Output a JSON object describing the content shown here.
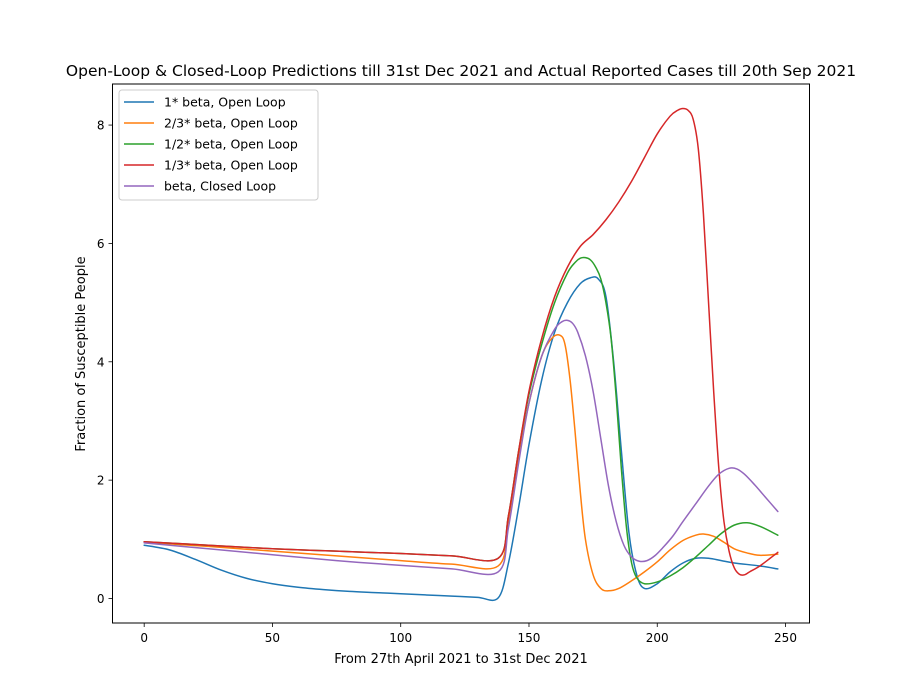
{
  "chart_data": {
    "type": "line",
    "title": "Open-Loop & Closed-Loop Predictions till 31st Dec 2021 and Actual Reported Cases till 20th Sep 2021",
    "xlabel": "From 27th April 2021 to 31st Dec 2021",
    "ylabel": "Fraction of Susceptible People",
    "xlim": [
      -12.35,
      259.35
    ],
    "ylim": [
      -0.414,
      8.694
    ],
    "xticks": [
      0,
      50,
      100,
      150,
      200,
      250
    ],
    "yticks": [
      0,
      2,
      4,
      6,
      8
    ],
    "grid": false,
    "legend_position": "upper-left",
    "series": [
      {
        "name": "1* beta, Open Loop",
        "color": "#1f77b4",
        "x": [
          0,
          10,
          20,
          30,
          40,
          50,
          60,
          70,
          80,
          90,
          100,
          110,
          120,
          130,
          138,
          142,
          146,
          150,
          155,
          160,
          165,
          170,
          174,
          177,
          180,
          183,
          186,
          189,
          192,
          195,
          200,
          205,
          210,
          215,
          220,
          225,
          230,
          240,
          247
        ],
        "y": [
          0.9,
          0.82,
          0.66,
          0.48,
          0.34,
          0.25,
          0.19,
          0.15,
          0.12,
          0.1,
          0.08,
          0.06,
          0.04,
          0.02,
          0.01,
          0.6,
          1.55,
          2.6,
          3.7,
          4.5,
          5.0,
          5.32,
          5.42,
          5.4,
          5.1,
          4.0,
          2.5,
          1.1,
          0.4,
          0.17,
          0.25,
          0.45,
          0.6,
          0.68,
          0.68,
          0.64,
          0.6,
          0.55,
          0.5
        ]
      },
      {
        "name": "2/3* beta, Open Loop",
        "color": "#ff7f0e",
        "x": [
          0,
          25,
          50,
          75,
          100,
          120,
          138,
          142,
          146,
          150,
          155,
          159,
          162,
          164,
          166,
          168,
          170,
          172,
          175,
          178,
          181,
          185,
          190,
          195,
          200,
          205,
          210,
          215,
          218,
          222,
          226,
          230,
          235,
          240,
          247
        ],
        "y": [
          0.95,
          0.88,
          0.8,
          0.72,
          0.64,
          0.58,
          0.55,
          1.3,
          2.4,
          3.3,
          4.1,
          4.4,
          4.45,
          4.3,
          3.7,
          2.8,
          1.8,
          1.0,
          0.4,
          0.17,
          0.13,
          0.17,
          0.3,
          0.45,
          0.62,
          0.82,
          0.98,
          1.07,
          1.09,
          1.05,
          0.95,
          0.84,
          0.77,
          0.73,
          0.75
        ]
      },
      {
        "name": "1/2* beta, Open Loop",
        "color": "#2ca02c",
        "x": [
          0,
          25,
          50,
          75,
          100,
          120,
          138,
          142,
          146,
          150,
          155,
          160,
          165,
          168,
          170,
          172,
          174,
          176,
          178,
          180,
          182,
          184,
          186,
          188,
          190,
          192,
          195,
          200,
          205,
          210,
          215,
          220,
          225,
          230,
          235,
          240,
          247
        ],
        "y": [
          0.96,
          0.9,
          0.84,
          0.8,
          0.76,
          0.72,
          0.68,
          1.4,
          2.5,
          3.45,
          4.3,
          5.0,
          5.5,
          5.68,
          5.75,
          5.76,
          5.72,
          5.6,
          5.4,
          5.0,
          4.4,
          3.4,
          2.2,
          1.2,
          0.6,
          0.35,
          0.25,
          0.28,
          0.38,
          0.52,
          0.7,
          0.9,
          1.1,
          1.24,
          1.28,
          1.22,
          1.07
        ]
      },
      {
        "name": "1/3* beta, Open Loop",
        "color": "#d62728",
        "x": [
          0,
          25,
          50,
          75,
          100,
          120,
          138,
          142,
          146,
          150,
          155,
          160,
          165,
          170,
          175,
          180,
          185,
          190,
          195,
          200,
          205,
          208,
          210,
          212,
          214,
          216,
          218,
          220,
          222,
          224,
          226,
          228,
          230,
          232,
          234,
          236,
          240,
          244,
          247
        ],
        "y": [
          0.96,
          0.9,
          0.84,
          0.8,
          0.76,
          0.72,
          0.68,
          1.4,
          2.5,
          3.5,
          4.4,
          5.1,
          5.6,
          5.95,
          6.15,
          6.4,
          6.7,
          7.05,
          7.45,
          7.85,
          8.15,
          8.25,
          8.28,
          8.25,
          8.1,
          7.6,
          6.5,
          5.0,
          3.5,
          2.2,
          1.3,
          0.8,
          0.52,
          0.41,
          0.4,
          0.45,
          0.55,
          0.68,
          0.78
        ]
      },
      {
        "name": "beta, Closed Loop",
        "color": "#9467bd",
        "x": [
          0,
          25,
          50,
          75,
          100,
          120,
          138,
          142,
          146,
          150,
          155,
          160,
          163,
          165,
          167,
          169,
          172,
          175,
          178,
          181,
          184,
          187,
          190,
          193,
          196,
          199,
          202,
          206,
          210,
          215,
          220,
          224,
          228,
          231,
          234,
          238,
          242,
          247
        ],
        "y": [
          0.94,
          0.84,
          0.74,
          0.64,
          0.56,
          0.5,
          0.45,
          1.2,
          2.3,
          3.3,
          4.1,
          4.55,
          4.68,
          4.7,
          4.65,
          4.5,
          4.1,
          3.5,
          2.7,
          1.9,
          1.3,
          0.9,
          0.7,
          0.63,
          0.64,
          0.72,
          0.85,
          1.05,
          1.3,
          1.6,
          1.9,
          2.1,
          2.2,
          2.19,
          2.1,
          1.92,
          1.72,
          1.47
        ]
      }
    ]
  }
}
